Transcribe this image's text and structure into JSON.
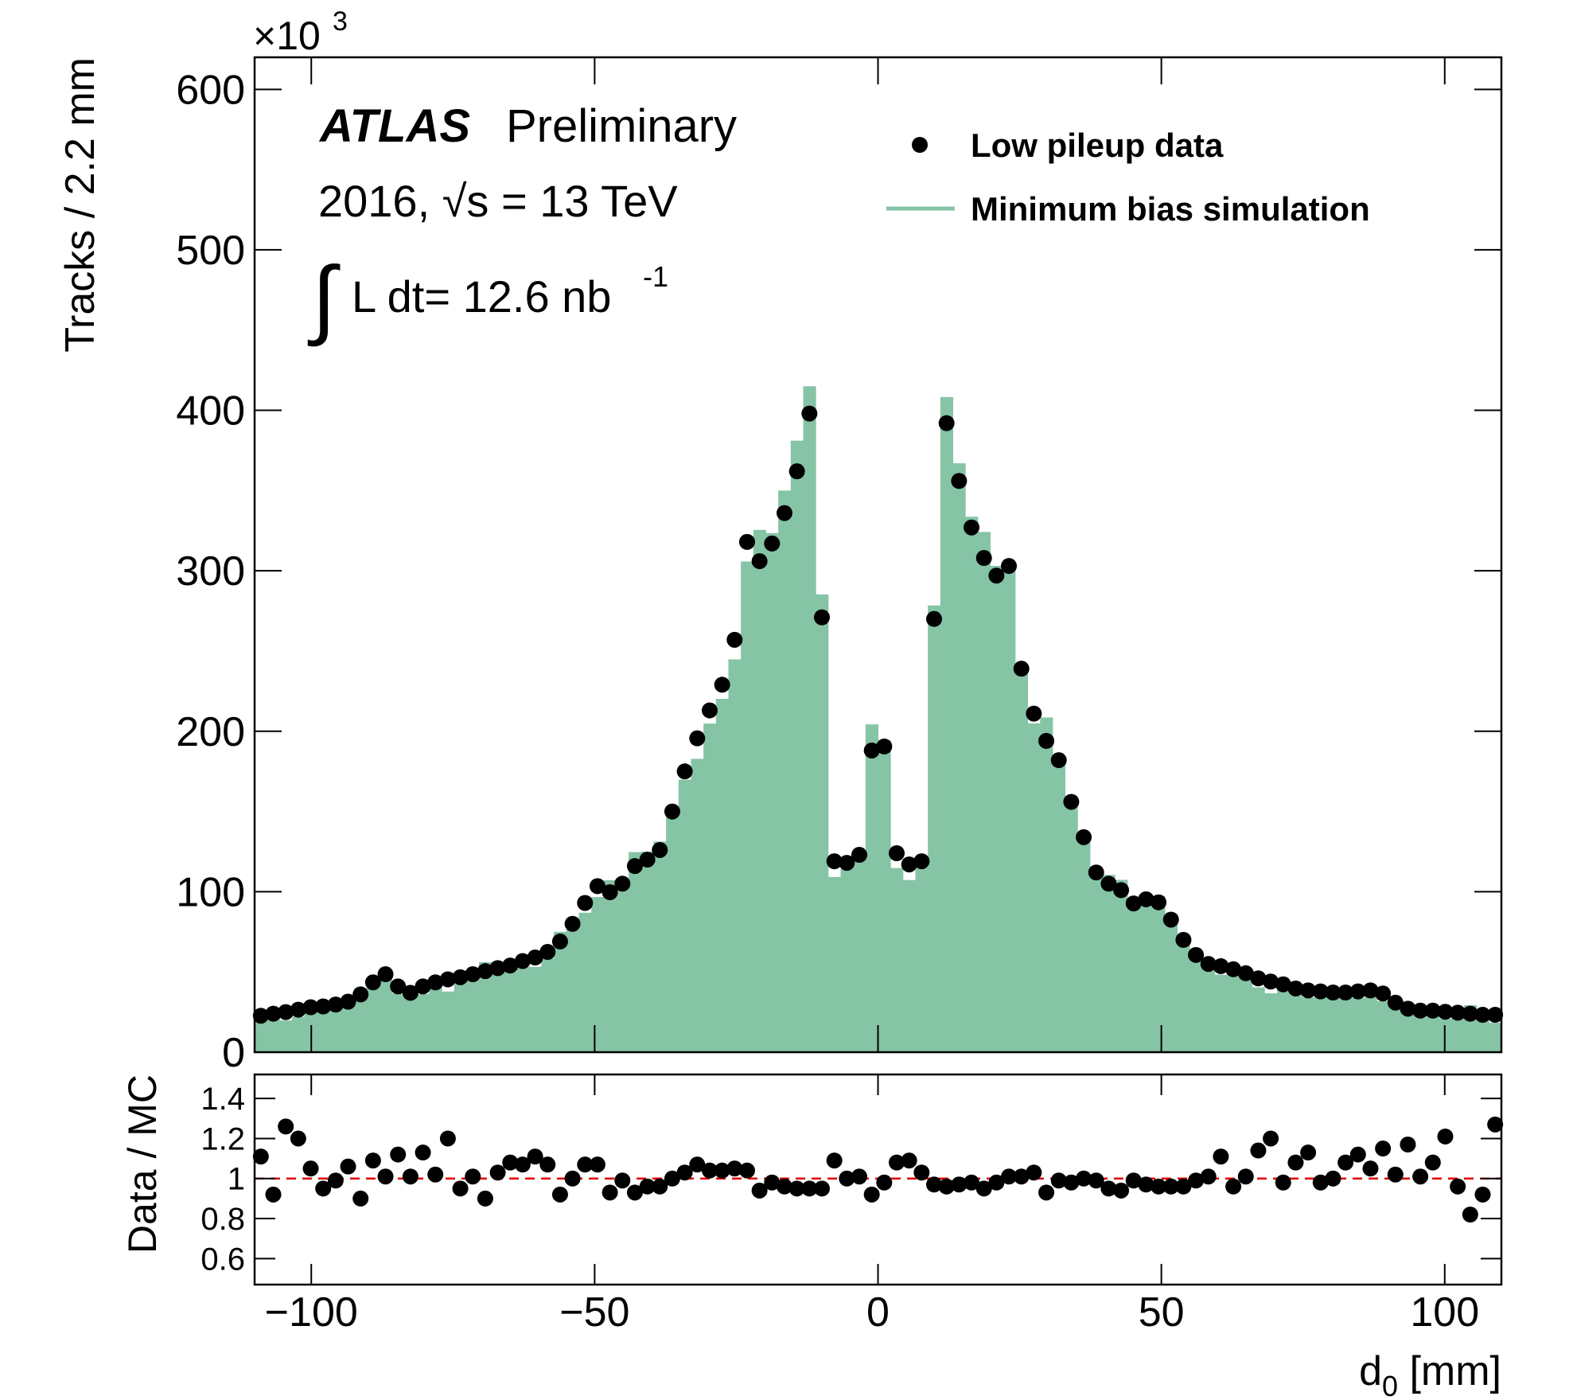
{
  "chart_data": [
    {
      "type": "histogram",
      "ylabel": "Tracks / 2.2 mm",
      "y_scale_prefix": "×10",
      "y_scale_exp": "3",
      "experiment": "ATLAS",
      "status": "Preliminary",
      "energy_text": "2016, √s = 13 TeV",
      "lumi_integral": "∫",
      "lumi_text": "L dt= 12.6 nb",
      "lumi_exp": "-1",
      "legend": "top-right",
      "xlim": [
        -110,
        110
      ],
      "ylim": [
        0,
        620
      ],
      "yticks": [
        0,
        100,
        200,
        300,
        400,
        500,
        600
      ],
      "bins": [
        -110,
        -107.8,
        -105.6,
        -103.4,
        -101.2,
        -99,
        -96.8,
        -94.6,
        -92.4,
        -90.2,
        -88,
        -85.8,
        -83.6,
        -81.4,
        -79.2,
        -77,
        -74.8,
        -72.6,
        -70.4,
        -68.2,
        -66,
        -63.8,
        -61.6,
        -59.4,
        -57.2,
        -55,
        -52.8,
        -50.6,
        -48.4,
        -46.2,
        -44,
        -41.8,
        -39.6,
        -37.4,
        -35.2,
        -33,
        -30.8,
        -28.6,
        -26.4,
        -24.2,
        -22,
        -19.8,
        -17.6,
        -15.4,
        -13.2,
        -11,
        -8.8,
        -6.6,
        -4.4,
        -2.2,
        0,
        2.2,
        4.4,
        6.6,
        8.8,
        11,
        13.2,
        15.4,
        17.6,
        19.8,
        22,
        24.2,
        26.4,
        28.6,
        30.8,
        33,
        35.2,
        37.4,
        39.6,
        41.8,
        44,
        46.2,
        48.4,
        50.6,
        52.8,
        55,
        57.2,
        59.4,
        61.6,
        63.8,
        66,
        68.2,
        70.4,
        72.6,
        74.8,
        77,
        79.2,
        81.4,
        83.6,
        85.8,
        88,
        90.2,
        92.4,
        94.6,
        96.8,
        99,
        101.2,
        103.4,
        105.6,
        107.8,
        110
      ],
      "series": [
        {
          "name": "Minimum bias simulation",
          "color": "#86c4a6",
          "style": "histogram",
          "values": [
            20.5,
            26.1,
            19.8,
            22.1,
            26.7,
            30.0,
            30.0,
            29.7,
            40.0,
            39.9,
            48.1,
            36.6,
            36.6,
            36.3,
            42.6,
            37.8,
            49.2,
            48.1,
            56.1,
            50.9,
            50.0,
            53.1,
            53.2,
            58.4,
            75.0,
            80.0,
            86.9,
            96.7,
            107.2,
            106.1,
            124.7,
            125.0,
            131.3,
            150.0,
            169.9,
            182.8,
            204.8,
            220.2,
            244.8,
            305.8,
            325.5,
            323.5,
            350.0,
            381.1,
            415,
            285.3,
            109.2,
            118,
            121.8,
            204.3,
            194.4,
            114.8,
            107.3,
            115.5,
            278.4,
            408.3,
            367,
            333.7,
            324.2,
            303.1,
            300,
            236.6,
            204.9,
            208.6,
            183.8,
            159.2,
            134,
            113.1,
            110.5,
            107.4,
            93.6,
            98.2,
            97.3,
            86.0,
            72.9,
            61.2,
            54.5,
            48.3,
            53.9,
            48.7,
            40.4,
            36.7,
            43.2,
            36.8,
            34.1,
            38.7,
            37.2,
            34.4,
            33.8,
            36.7,
            31.8,
            30.3,
            26.8,
            25.4,
            24.0,
            20.8,
            25.6,
            29.3,
            25.3,
            18.3
          ]
        },
        {
          "name": "Low pileup data",
          "color": "#000000",
          "style": "points",
          "values": [
            22.7,
            24,
            25,
            26.5,
            28,
            28.5,
            29.7,
            31.5,
            36,
            43.5,
            48.6,
            41,
            37,
            41,
            43.5,
            45.4,
            46.7,
            48.6,
            50.5,
            52.4,
            54,
            56.8,
            59,
            62.5,
            69,
            80,
            93,
            103.5,
            99.7,
            105,
            116,
            120,
            126,
            150,
            175,
            195.6,
            213,
            229,
            257,
            318,
            306,
            317,
            336,
            362,
            398,
            271,
            119,
            118,
            123,
            188,
            190.5,
            124,
            117,
            119,
            270,
            392,
            356,
            327,
            308,
            297,
            303,
            239,
            211,
            194,
            182,
            156,
            134,
            112,
            105,
            101,
            92.7,
            95.3,
            93.4,
            82.6,
            70,
            60.6,
            55,
            53.6,
            51.7,
            49.2,
            46,
            44,
            42.3,
            39.7,
            38.5,
            37.9,
            37.2,
            37.2,
            37.9,
            38.5,
            36.6,
            30.9,
            27.1,
            25.9,
            25.9,
            25.2,
            24.6,
            24,
            23.3,
            23.3
          ]
        }
      ]
    },
    {
      "type": "ratio",
      "ylabel": "Data / MC",
      "xlabel": "d",
      "xlabel_sub": "0",
      "xlabel_unit": " [mm]",
      "xlim": [
        -110,
        110
      ],
      "xticks": [
        {
          "value": -100,
          "label": "−100"
        },
        {
          "value": -50,
          "label": "−50"
        },
        0,
        50,
        100
      ],
      "ylim": [
        0.47,
        1.52
      ],
      "yticks": [
        0.6,
        0.8,
        1,
        1.2,
        1.4
      ],
      "reference_line": 1,
      "reference_color": "#e00000",
      "color": "#000000",
      "values": [
        1.11,
        0.92,
        1.26,
        1.2,
        1.05,
        0.95,
        0.99,
        1.06,
        0.9,
        1.09,
        1.01,
        1.12,
        1.01,
        1.13,
        1.02,
        1.2,
        0.95,
        1.01,
        0.9,
        1.03,
        1.08,
        1.07,
        1.11,
        1.07,
        0.92,
        1.0,
        1.07,
        1.07,
        0.93,
        0.99,
        0.93,
        0.96,
        0.96,
        1.0,
        1.03,
        1.07,
        1.04,
        1.04,
        1.05,
        1.04,
        0.94,
        0.98,
        0.96,
        0.95,
        0.95,
        0.95,
        1.09,
        1.0,
        1.01,
        0.92,
        0.98,
        1.08,
        1.09,
        1.03,
        0.97,
        0.96,
        0.97,
        0.98,
        0.95,
        0.98,
        1.01,
        1.01,
        1.03,
        0.93,
        0.99,
        0.98,
        1.0,
        0.99,
        0.95,
        0.94,
        0.99,
        0.97,
        0.96,
        0.96,
        0.96,
        0.99,
        1.01,
        1.11,
        0.96,
        1.01,
        1.14,
        1.2,
        0.98,
        1.08,
        1.13,
        0.98,
        1.0,
        1.08,
        1.12,
        1.05,
        1.15,
        1.02,
        1.17,
        1.01,
        1.08,
        1.21,
        0.96,
        0.82,
        0.92,
        1.27
      ]
    }
  ]
}
